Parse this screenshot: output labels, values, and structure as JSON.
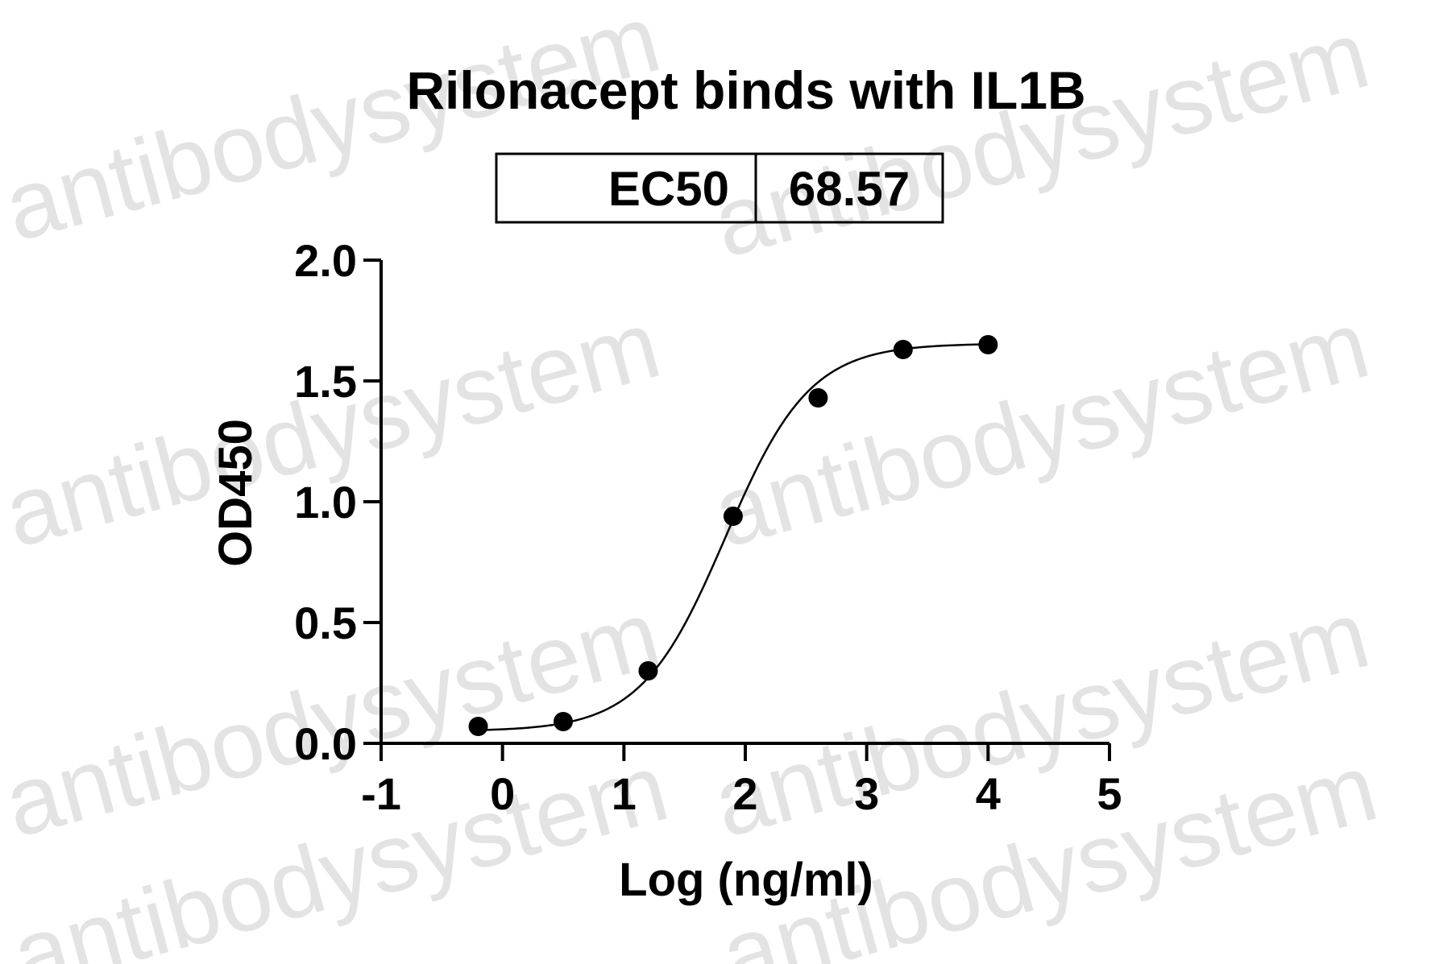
{
  "watermark": "antibodysystem",
  "ec50_table": {
    "label": "EC50",
    "value": "68.57"
  },
  "chart_data": {
    "type": "scatter",
    "title": "Rilonacept binds with IL1B",
    "xlabel": "Log (ng/ml)",
    "ylabel": "OD450",
    "xlim": [
      -1,
      5
    ],
    "ylim": [
      0,
      2.0
    ],
    "x_ticks": [
      "-1",
      "0",
      "1",
      "2",
      "3",
      "4",
      "5"
    ],
    "y_ticks": [
      "0.0",
      "0.5",
      "1.0",
      "1.5",
      "2.0"
    ],
    "grid": false,
    "legend": "none",
    "series": [
      {
        "x": [
          -0.2,
          0.5,
          1.2,
          1.9,
          2.6,
          3.3,
          4.0
        ],
        "y": [
          0.07,
          0.09,
          0.3,
          0.94,
          1.43,
          1.63,
          1.65
        ],
        "fit": "sigmoidal 4PL"
      }
    ],
    "marker_color": "#000000"
  }
}
